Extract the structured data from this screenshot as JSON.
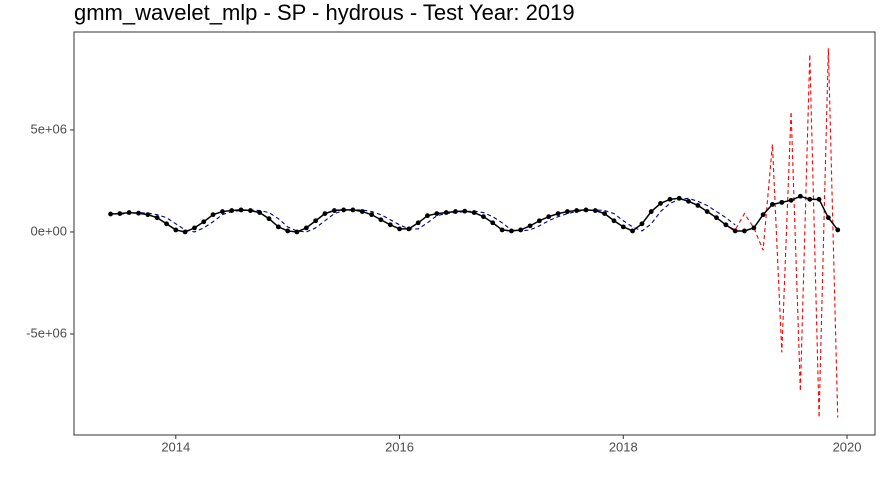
{
  "chart_data": {
    "type": "line",
    "title": "gmm_wavelet_mlp - SP - hydrous - Test Year: 2019",
    "xlim": [
      2013.09,
      2020.25
    ],
    "xticks": [
      2014,
      2016,
      2018,
      2020
    ],
    "ylim": [
      -9950000,
      9800000
    ],
    "yticks": [
      {
        "value": -5000000,
        "label": "-5e+06"
      },
      {
        "value": 0,
        "label": "0e+00"
      },
      {
        "value": 5000000,
        "label": "5e+06"
      }
    ],
    "grid": false,
    "series": [
      {
        "color": "#00008b",
        "dash": true,
        "markers": false,
        "x": [
          2013.5,
          2013.583,
          2013.667,
          2013.75,
          2013.833,
          2013.917,
          2014,
          2014.083,
          2014.167,
          2014.25,
          2014.333,
          2014.417,
          2014.5,
          2014.583,
          2014.667,
          2014.75,
          2014.833,
          2014.917,
          2015,
          2015.083,
          2015.167,
          2015.25,
          2015.333,
          2015.417,
          2015.5,
          2015.583,
          2015.667,
          2015.75,
          2015.833,
          2015.917,
          2016,
          2016.083,
          2016.167,
          2016.25,
          2016.333,
          2016.417,
          2016.5,
          2016.583,
          2016.667,
          2016.75,
          2016.833,
          2016.917,
          2017,
          2017.083,
          2017.167,
          2017.25,
          2017.333,
          2017.417,
          2017.5,
          2017.583,
          2017.667,
          2017.75,
          2017.833,
          2017.917,
          2018,
          2018.083,
          2018.167,
          2018.25,
          2018.333,
          2018.417,
          2018.5,
          2018.583,
          2018.667,
          2018.75,
          2018.833,
          2018.917,
          2019
        ],
        "values": [
          880000,
          900000,
          950000,
          920000,
          850000,
          700000,
          400000,
          100000,
          0,
          200000,
          500000,
          850000,
          1000000,
          1050000,
          1080000,
          1050000,
          950000,
          650000,
          250000,
          50000,
          0,
          200000,
          550000,
          900000,
          1050000,
          1080000,
          1080000,
          1000000,
          850000,
          600000,
          350000,
          150000,
          150000,
          450000,
          800000,
          900000,
          950000,
          1000000,
          1020000,
          950000,
          750000,
          450000,
          100000,
          50000,
          100000,
          300000,
          550000,
          750000,
          900000,
          1000000,
          1050000,
          1080000,
          1050000,
          900000,
          550000,
          250000,
          50000,
          400000,
          1000000,
          1400000,
          1600000,
          1650000,
          1500000,
          1300000,
          1000000,
          700000,
          350000
        ]
      },
      {
        "color": "#ff0000",
        "dash": true,
        "markers": false,
        "x": [
          2018.75,
          2018.833,
          2018.917,
          2019,
          2019.083,
          2019.167,
          2019.25,
          2019.333,
          2019.417,
          2019.5,
          2019.583,
          2019.667,
          2019.75,
          2019.833,
          2019.917
        ],
        "values": [
          1000000,
          700000,
          350000,
          100000,
          900000,
          200000,
          -900000,
          4300000,
          -5900000,
          5900000,
          -7800000,
          8700000,
          -9100000,
          9000000,
          -9100000
        ]
      },
      {
        "color": "#000000",
        "dash": false,
        "markers": true,
        "x": [
          2013.417,
          2013.5,
          2013.583,
          2013.667,
          2013.75,
          2013.833,
          2013.917,
          2014,
          2014.083,
          2014.167,
          2014.25,
          2014.333,
          2014.417,
          2014.5,
          2014.583,
          2014.667,
          2014.75,
          2014.833,
          2014.917,
          2015,
          2015.083,
          2015.167,
          2015.25,
          2015.333,
          2015.417,
          2015.5,
          2015.583,
          2015.667,
          2015.75,
          2015.833,
          2015.917,
          2016,
          2016.083,
          2016.167,
          2016.25,
          2016.333,
          2016.417,
          2016.5,
          2016.583,
          2016.667,
          2016.75,
          2016.833,
          2016.917,
          2017,
          2017.083,
          2017.167,
          2017.25,
          2017.333,
          2017.417,
          2017.5,
          2017.583,
          2017.667,
          2017.75,
          2017.833,
          2017.917,
          2018,
          2018.083,
          2018.167,
          2018.25,
          2018.333,
          2018.417,
          2018.5,
          2018.583,
          2018.667,
          2018.75,
          2018.833,
          2018.917,
          2019,
          2019.083,
          2019.167,
          2019.25,
          2019.333,
          2019.417,
          2019.5,
          2019.583,
          2019.667,
          2019.75,
          2019.833,
          2019.917
        ],
        "values": [
          880000,
          900000,
          950000,
          920000,
          850000,
          700000,
          400000,
          100000,
          0,
          200000,
          500000,
          850000,
          1000000,
          1050000,
          1080000,
          1050000,
          950000,
          650000,
          250000,
          50000,
          0,
          200000,
          550000,
          900000,
          1050000,
          1080000,
          1080000,
          1000000,
          850000,
          600000,
          350000,
          150000,
          150000,
          450000,
          800000,
          900000,
          950000,
          1000000,
          1020000,
          950000,
          750000,
          450000,
          100000,
          50000,
          100000,
          300000,
          550000,
          750000,
          900000,
          1000000,
          1050000,
          1080000,
          1050000,
          900000,
          550000,
          250000,
          50000,
          400000,
          1000000,
          1400000,
          1600000,
          1650000,
          1500000,
          1300000,
          1000000,
          700000,
          350000,
          50000,
          50000,
          200000,
          850000,
          1350000,
          1450000,
          1550000,
          1750000,
          1600000,
          1600000,
          700000,
          100000
        ]
      }
    ]
  }
}
